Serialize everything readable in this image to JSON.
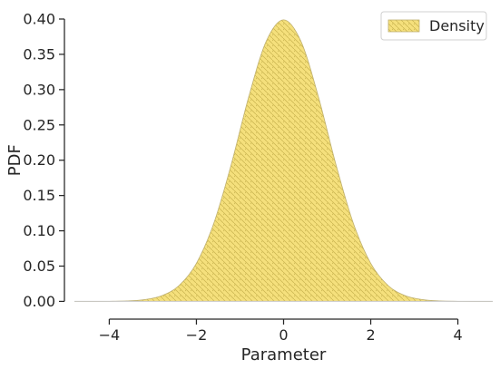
{
  "chart_data": {
    "type": "area",
    "xlabel": "Parameter",
    "ylabel": "PDF",
    "xlim": [
      -4.8,
      4.8
    ],
    "ylim": [
      -0.02,
      0.4
    ],
    "xticks": [
      -4,
      -2,
      0,
      2,
      4
    ],
    "xtick_labels": [
      "−4",
      "−2",
      "0",
      "2",
      "4"
    ],
    "yticks": [
      0.0,
      0.05,
      0.1,
      0.15,
      0.2,
      0.25,
      0.3,
      0.35,
      0.4
    ],
    "ytick_labels": [
      "0.00",
      "0.05",
      "0.10",
      "0.15",
      "0.20",
      "0.25",
      "0.30",
      "0.35",
      "0.40"
    ],
    "grid": false,
    "legend_position": "top-right",
    "series": [
      {
        "name": "Density",
        "x": [
          -4.8,
          -4.4,
          -4.0,
          -3.6,
          -3.2,
          -2.8,
          -2.4,
          -2.0,
          -1.6,
          -1.2,
          -0.8,
          -0.4,
          0.0,
          0.4,
          0.8,
          1.2,
          1.6,
          2.0,
          2.4,
          2.8,
          3.2,
          3.6,
          4.0,
          4.4,
          4.8
        ],
        "y": [
          0.0,
          0.0,
          0.0001,
          0.0006,
          0.0024,
          0.0079,
          0.0224,
          0.054,
          0.1109,
          0.1942,
          0.2897,
          0.3683,
          0.3989,
          0.3683,
          0.2897,
          0.1942,
          0.1109,
          0.054,
          0.0224,
          0.0079,
          0.0024,
          0.0006,
          0.0001,
          0.0,
          0.0
        ],
        "fill_color": "#F5E07C",
        "hatch_color": "#C8B24E",
        "edge_color": "#BFB070"
      }
    ]
  }
}
